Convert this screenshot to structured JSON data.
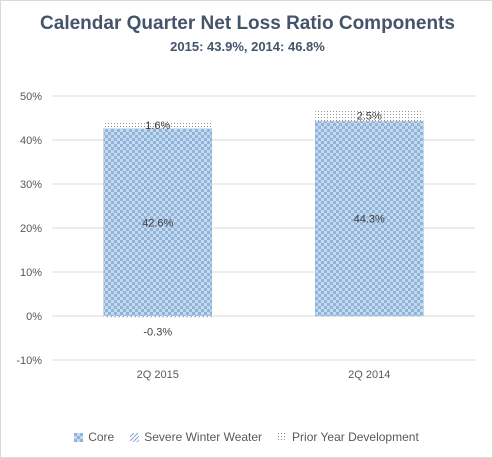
{
  "chart_data": {
    "type": "bar",
    "stacked": true,
    "title": "Calendar Quarter Net Loss Ratio Components",
    "subtitle": "2015: 43.9%, 2014: 46.8%",
    "categories": [
      "2Q 2015",
      "2Q 2014"
    ],
    "series": [
      {
        "name": "Core",
        "values": [
          42.6,
          44.3
        ],
        "labels": [
          "42.6%",
          "44.3%"
        ],
        "pattern": "checker",
        "color": "#8fb4d9"
      },
      {
        "name": "Severe Winter Weater",
        "values": [
          -0.3,
          null
        ],
        "labels": [
          "-0.3%",
          ""
        ],
        "pattern": "diagonal",
        "color": "#7fa3c8"
      },
      {
        "name": "Prior Year Development",
        "values": [
          1.6,
          2.5
        ],
        "labels": [
          "1.6%",
          "2.5%"
        ],
        "pattern": "dots",
        "color": "#909090"
      }
    ],
    "yticks": [
      "-10%",
      "0%",
      "10%",
      "20%",
      "30%",
      "40%",
      "50%"
    ],
    "ylim": [
      -10,
      50
    ],
    "grid": true,
    "legend_position": "bottom"
  }
}
